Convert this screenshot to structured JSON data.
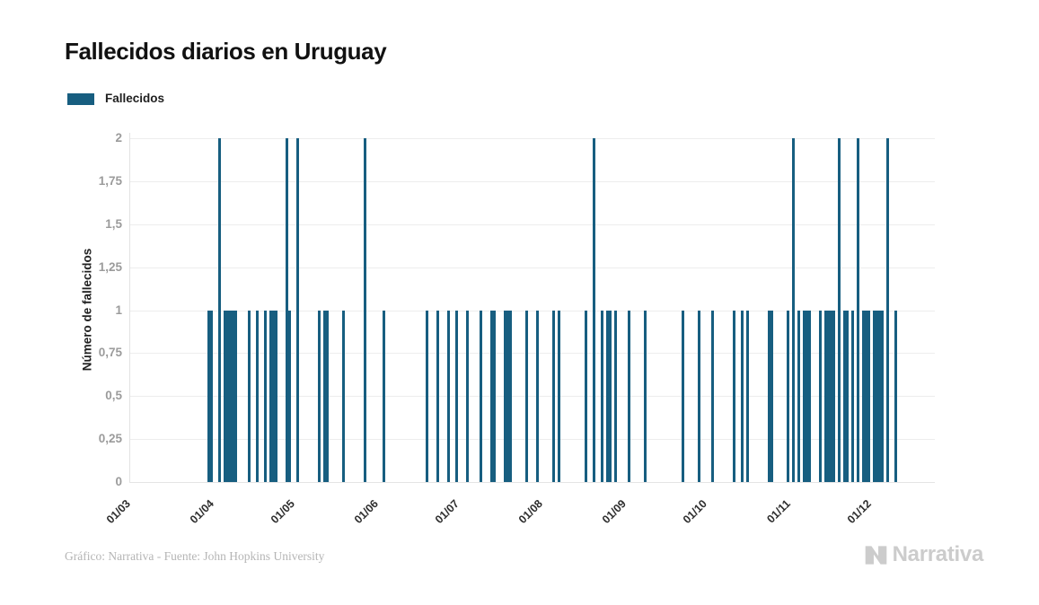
{
  "title": "Fallecidos diarios en Uruguay",
  "legend": {
    "label": "Fallecidos",
    "color": "#175E80"
  },
  "y_axis": {
    "label": "Número de fallecidos",
    "ticks": [
      "2",
      "1,75",
      "1,5",
      "1,25",
      "1",
      "0,75",
      "0,5",
      "0,25",
      "0"
    ],
    "tick_values": [
      2,
      1.75,
      1.5,
      1.25,
      1,
      0.75,
      0.5,
      0.25,
      0
    ]
  },
  "x_axis": {
    "ticks": [
      "01/03",
      "01/04",
      "01/05",
      "01/06",
      "01/07",
      "01/08",
      "01/09",
      "01/10",
      "01/11",
      "01/12"
    ]
  },
  "footer": {
    "credit": "Gráfico: Narrativa - Fuente: John Hopkins University",
    "logo_text": "Narrativa"
  },
  "colors": {
    "bar": "#175E80",
    "grid": "#ededed",
    "axis": "#e2e2e2",
    "ytick_text": "#9b9b9b",
    "xtick_text": "#2e2e2e",
    "title_text": "#111111",
    "credit_text": "#b5b5b5",
    "logo": "#cccccc"
  },
  "chart_data": {
    "type": "bar",
    "title": "Fallecidos diarios en Uruguay",
    "xlabel": "",
    "ylabel": "Número de fallecidos",
    "ylim": [
      0,
      2
    ],
    "grid": true,
    "legend_position": "top-left",
    "x_tick_format": "DD/MM",
    "x_range_ticks": [
      "01/03",
      "01/04",
      "01/05",
      "01/06",
      "01/07",
      "01/08",
      "01/09",
      "01/10",
      "01/11",
      "01/12"
    ],
    "series": [
      {
        "name": "Fallecidos",
        "points": [
          {
            "date": "31/03",
            "value": 1
          },
          {
            "date": "01/04",
            "value": 1
          },
          {
            "date": "04/04",
            "value": 2
          },
          {
            "date": "06/04",
            "value": 1
          },
          {
            "date": "07/04",
            "value": 1
          },
          {
            "date": "08/04",
            "value": 1
          },
          {
            "date": "09/04",
            "value": 1
          },
          {
            "date": "10/04",
            "value": 1
          },
          {
            "date": "15/04",
            "value": 1
          },
          {
            "date": "18/04",
            "value": 1
          },
          {
            "date": "21/04",
            "value": 1
          },
          {
            "date": "23/04",
            "value": 1
          },
          {
            "date": "24/04",
            "value": 1
          },
          {
            "date": "25/04",
            "value": 1
          },
          {
            "date": "29/04",
            "value": 2
          },
          {
            "date": "30/04",
            "value": 1
          },
          {
            "date": "03/05",
            "value": 2
          },
          {
            "date": "11/05",
            "value": 1
          },
          {
            "date": "13/05",
            "value": 1
          },
          {
            "date": "14/05",
            "value": 1
          },
          {
            "date": "20/05",
            "value": 1
          },
          {
            "date": "28/05",
            "value": 2
          },
          {
            "date": "04/06",
            "value": 1
          },
          {
            "date": "20/06",
            "value": 1
          },
          {
            "date": "24/06",
            "value": 1
          },
          {
            "date": "28/06",
            "value": 1
          },
          {
            "date": "01/07",
            "value": 1
          },
          {
            "date": "05/07",
            "value": 1
          },
          {
            "date": "10/07",
            "value": 1
          },
          {
            "date": "14/07",
            "value": 1
          },
          {
            "date": "15/07",
            "value": 1
          },
          {
            "date": "19/07",
            "value": 1
          },
          {
            "date": "20/07",
            "value": 1
          },
          {
            "date": "21/07",
            "value": 1
          },
          {
            "date": "27/07",
            "value": 1
          },
          {
            "date": "31/07",
            "value": 1
          },
          {
            "date": "06/08",
            "value": 1
          },
          {
            "date": "08/08",
            "value": 1
          },
          {
            "date": "18/08",
            "value": 1
          },
          {
            "date": "21/08",
            "value": 2
          },
          {
            "date": "24/08",
            "value": 1
          },
          {
            "date": "26/08",
            "value": 1
          },
          {
            "date": "27/08",
            "value": 1
          },
          {
            "date": "29/08",
            "value": 1
          },
          {
            "date": "03/09",
            "value": 1
          },
          {
            "date": "09/09",
            "value": 1
          },
          {
            "date": "23/09",
            "value": 1
          },
          {
            "date": "29/09",
            "value": 1
          },
          {
            "date": "04/10",
            "value": 1
          },
          {
            "date": "12/10",
            "value": 1
          },
          {
            "date": "15/10",
            "value": 1
          },
          {
            "date": "17/10",
            "value": 1
          },
          {
            "date": "25/10",
            "value": 1
          },
          {
            "date": "26/10",
            "value": 1
          },
          {
            "date": "01/11",
            "value": 1
          },
          {
            "date": "03/11",
            "value": 2
          },
          {
            "date": "05/11",
            "value": 1
          },
          {
            "date": "07/11",
            "value": 1
          },
          {
            "date": "08/11",
            "value": 1
          },
          {
            "date": "09/11",
            "value": 1
          },
          {
            "date": "13/11",
            "value": 1
          },
          {
            "date": "15/11",
            "value": 1
          },
          {
            "date": "16/11",
            "value": 1
          },
          {
            "date": "17/11",
            "value": 1
          },
          {
            "date": "18/11",
            "value": 1
          },
          {
            "date": "20/11",
            "value": 2
          },
          {
            "date": "22/11",
            "value": 1
          },
          {
            "date": "23/11",
            "value": 1
          },
          {
            "date": "25/11",
            "value": 1
          },
          {
            "date": "27/11",
            "value": 2
          },
          {
            "date": "29/11",
            "value": 1
          },
          {
            "date": "30/11",
            "value": 1
          },
          {
            "date": "01/12",
            "value": 1
          },
          {
            "date": "03/12",
            "value": 1
          },
          {
            "date": "04/12",
            "value": 1
          },
          {
            "date": "05/12",
            "value": 1
          },
          {
            "date": "06/12",
            "value": 1
          },
          {
            "date": "08/12",
            "value": 2
          },
          {
            "date": "11/12",
            "value": 1
          }
        ]
      }
    ]
  }
}
